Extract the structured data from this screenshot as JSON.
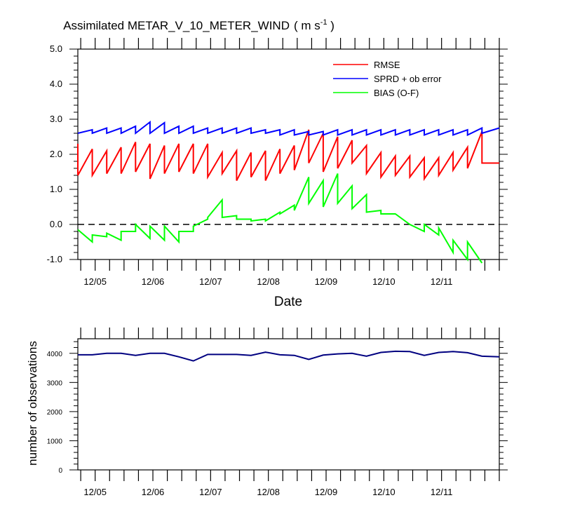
{
  "title": {
    "main": "Assimilated METAR_V_10_METER_WIND",
    "units_open": "( m s",
    "units_sup": "-1",
    "units_close": " )"
  },
  "chart_data": [
    {
      "type": "line",
      "xlabel": "Date",
      "ylabel": "",
      "x_categories": [
        "12/05",
        "12/06",
        "12/07",
        "12/08",
        "12/09",
        "12/10",
        "12/11"
      ],
      "xlim": [
        -0.3,
        7.0
      ],
      "ylim": [
        -1.0,
        5.0
      ],
      "y_ticks": [
        "5.0",
        "4.0",
        "3.0",
        "2.0",
        "1.0",
        "0.0",
        "-1.0"
      ],
      "reference_line": {
        "y": 0.0,
        "style": "dashed",
        "color": "#000000"
      },
      "legend_position": "top-right",
      "series": [
        {
          "name": "RMSE",
          "color": "#ff0000",
          "points": [
            [
              -0.3,
              2.3
            ],
            [
              -0.3,
              1.4
            ],
            [
              -0.05,
              2.15
            ],
            [
              -0.05,
              1.4
            ],
            [
              0.2,
              2.1
            ],
            [
              0.2,
              1.45
            ],
            [
              0.45,
              2.2
            ],
            [
              0.45,
              1.45
            ],
            [
              0.7,
              2.35
            ],
            [
              0.7,
              1.5
            ],
            [
              0.95,
              2.3
            ],
            [
              0.95,
              1.3
            ],
            [
              1.2,
              2.25
            ],
            [
              1.2,
              1.45
            ],
            [
              1.45,
              2.3
            ],
            [
              1.45,
              1.5
            ],
            [
              1.7,
              2.3
            ],
            [
              1.7,
              1.45
            ],
            [
              1.95,
              2.3
            ],
            [
              1.95,
              1.35
            ],
            [
              2.2,
              2.05
            ],
            [
              2.2,
              1.45
            ],
            [
              2.45,
              2.1
            ],
            [
              2.45,
              1.25
            ],
            [
              2.7,
              2.05
            ],
            [
              2.7,
              1.35
            ],
            [
              2.95,
              2.1
            ],
            [
              2.95,
              1.25
            ],
            [
              3.2,
              2.15
            ],
            [
              3.2,
              1.45
            ],
            [
              3.45,
              2.25
            ],
            [
              3.45,
              1.55
            ],
            [
              3.7,
              2.7
            ],
            [
              3.7,
              1.75
            ],
            [
              3.95,
              2.6
            ],
            [
              3.95,
              1.5
            ],
            [
              4.2,
              2.5
            ],
            [
              4.2,
              1.6
            ],
            [
              4.45,
              2.4
            ],
            [
              4.45,
              1.75
            ],
            [
              4.7,
              2.25
            ],
            [
              4.7,
              1.45
            ],
            [
              4.95,
              2.05
            ],
            [
              4.95,
              1.35
            ],
            [
              5.2,
              1.95
            ],
            [
              5.2,
              1.4
            ],
            [
              5.45,
              1.95
            ],
            [
              5.45,
              1.35
            ],
            [
              5.7,
              1.9
            ],
            [
              5.7,
              1.3
            ],
            [
              5.95,
              1.9
            ],
            [
              5.95,
              1.4
            ],
            [
              6.2,
              2.05
            ],
            [
              6.2,
              1.55
            ],
            [
              6.45,
              2.2
            ],
            [
              6.45,
              1.6
            ],
            [
              6.7,
              2.65
            ],
            [
              6.7,
              1.75
            ],
            [
              7.0,
              1.75
            ]
          ]
        },
        {
          "name": "SPRD + ob error",
          "color": "#0000ff",
          "points": [
            [
              -0.3,
              2.6
            ],
            [
              -0.05,
              2.7
            ],
            [
              -0.05,
              2.6
            ],
            [
              0.2,
              2.75
            ],
            [
              0.2,
              2.6
            ],
            [
              0.45,
              2.75
            ],
            [
              0.45,
              2.6
            ],
            [
              0.7,
              2.8
            ],
            [
              0.7,
              2.6
            ],
            [
              0.95,
              2.92
            ],
            [
              0.95,
              2.6
            ],
            [
              1.2,
              2.9
            ],
            [
              1.2,
              2.6
            ],
            [
              1.45,
              2.8
            ],
            [
              1.45,
              2.6
            ],
            [
              1.7,
              2.8
            ],
            [
              1.7,
              2.6
            ],
            [
              1.95,
              2.75
            ],
            [
              1.95,
              2.6
            ],
            [
              2.2,
              2.75
            ],
            [
              2.2,
              2.6
            ],
            [
              2.45,
              2.75
            ],
            [
              2.45,
              2.6
            ],
            [
              2.7,
              2.75
            ],
            [
              2.7,
              2.6
            ],
            [
              2.95,
              2.7
            ],
            [
              2.95,
              2.6
            ],
            [
              3.2,
              2.7
            ],
            [
              3.2,
              2.55
            ],
            [
              3.45,
              2.7
            ],
            [
              3.45,
              2.55
            ],
            [
              3.7,
              2.65
            ],
            [
              3.7,
              2.55
            ],
            [
              3.95,
              2.65
            ],
            [
              3.95,
              2.55
            ],
            [
              4.2,
              2.7
            ],
            [
              4.2,
              2.55
            ],
            [
              4.45,
              2.7
            ],
            [
              4.45,
              2.55
            ],
            [
              4.7,
              2.7
            ],
            [
              4.7,
              2.55
            ],
            [
              4.95,
              2.7
            ],
            [
              4.95,
              2.55
            ],
            [
              5.2,
              2.7
            ],
            [
              5.2,
              2.55
            ],
            [
              5.45,
              2.7
            ],
            [
              5.45,
              2.55
            ],
            [
              5.7,
              2.7
            ],
            [
              5.7,
              2.55
            ],
            [
              5.95,
              2.7
            ],
            [
              5.95,
              2.55
            ],
            [
              6.2,
              2.7
            ],
            [
              6.2,
              2.55
            ],
            [
              6.45,
              2.7
            ],
            [
              6.45,
              2.55
            ],
            [
              6.7,
              2.75
            ],
            [
              6.7,
              2.6
            ],
            [
              7.0,
              2.75
            ]
          ]
        },
        {
          "name": "BIAS (O-F)",
          "color": "#00ff00",
          "points": [
            [
              -0.3,
              -0.15
            ],
            [
              -0.05,
              -0.5
            ],
            [
              -0.05,
              -0.3
            ],
            [
              0.2,
              -0.35
            ],
            [
              0.2,
              -0.25
            ],
            [
              0.45,
              -0.45
            ],
            [
              0.45,
              -0.2
            ],
            [
              0.7,
              -0.2
            ],
            [
              0.7,
              0.0
            ],
            [
              0.95,
              -0.4
            ],
            [
              0.95,
              -0.05
            ],
            [
              1.2,
              -0.45
            ],
            [
              1.2,
              -0.05
            ],
            [
              1.45,
              -0.5
            ],
            [
              1.45,
              -0.2
            ],
            [
              1.7,
              -0.2
            ],
            [
              1.7,
              -0.05
            ],
            [
              1.95,
              0.15
            ],
            [
              1.95,
              0.2
            ],
            [
              2.2,
              0.7
            ],
            [
              2.2,
              0.2
            ],
            [
              2.45,
              0.25
            ],
            [
              2.45,
              0.15
            ],
            [
              2.7,
              0.15
            ],
            [
              2.7,
              0.1
            ],
            [
              2.95,
              0.15
            ],
            [
              2.95,
              0.1
            ],
            [
              3.2,
              0.35
            ],
            [
              3.2,
              0.3
            ],
            [
              3.45,
              0.55
            ],
            [
              3.45,
              0.4
            ],
            [
              3.7,
              1.35
            ],
            [
              3.7,
              0.6
            ],
            [
              3.95,
              1.25
            ],
            [
              3.95,
              0.5
            ],
            [
              4.2,
              1.45
            ],
            [
              4.2,
              0.6
            ],
            [
              4.45,
              1.1
            ],
            [
              4.45,
              0.45
            ],
            [
              4.7,
              0.85
            ],
            [
              4.7,
              0.35
            ],
            [
              4.95,
              0.4
            ],
            [
              4.95,
              0.3
            ],
            [
              5.2,
              0.3
            ],
            [
              5.45,
              0.0
            ],
            [
              5.7,
              -0.2
            ],
            [
              5.7,
              0.0
            ],
            [
              5.95,
              -0.3
            ],
            [
              5.95,
              -0.1
            ],
            [
              6.2,
              -0.8
            ],
            [
              6.2,
              -0.45
            ],
            [
              6.45,
              -1.0
            ],
            [
              6.45,
              -0.5
            ],
            [
              6.7,
              -1.1
            ]
          ]
        }
      ]
    },
    {
      "type": "line",
      "xlabel": "",
      "ylabel": "number of observations",
      "x_categories": [
        "12/05",
        "12/06",
        "12/07",
        "12/08",
        "12/09",
        "12/10",
        "12/11"
      ],
      "xlim": [
        -0.3,
        7.0
      ],
      "ylim": [
        0,
        4500
      ],
      "y_ticks": [
        "4000",
        "3000",
        "2000",
        "1000",
        "0"
      ],
      "series": [
        {
          "name": "number of observations",
          "color": "#000080",
          "points": [
            [
              -0.3,
              3950
            ],
            [
              -0.05,
              3950
            ],
            [
              0.2,
              4000
            ],
            [
              0.45,
              4000
            ],
            [
              0.7,
              3930
            ],
            [
              0.95,
              4000
            ],
            [
              1.2,
              4000
            ],
            [
              1.45,
              3880
            ],
            [
              1.7,
              3740
            ],
            [
              1.95,
              3960
            ],
            [
              2.2,
              3960
            ],
            [
              2.45,
              3960
            ],
            [
              2.7,
              3930
            ],
            [
              2.95,
              4040
            ],
            [
              3.2,
              3950
            ],
            [
              3.45,
              3930
            ],
            [
              3.7,
              3790
            ],
            [
              3.95,
              3940
            ],
            [
              4.2,
              3980
            ],
            [
              4.45,
              4000
            ],
            [
              4.7,
              3900
            ],
            [
              4.95,
              4030
            ],
            [
              5.2,
              4070
            ],
            [
              5.45,
              4060
            ],
            [
              5.7,
              3930
            ],
            [
              5.95,
              4030
            ],
            [
              6.2,
              4060
            ],
            [
              6.45,
              4020
            ],
            [
              6.7,
              3900
            ],
            [
              7.0,
              3880
            ]
          ]
        }
      ]
    }
  ]
}
